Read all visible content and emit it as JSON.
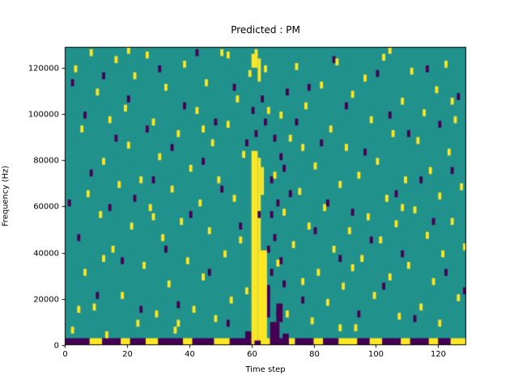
{
  "figure": {
    "title": "Predicted : PM",
    "xlabel": "Time step",
    "ylabel": "Frequency (Hz)"
  },
  "chart_data": {
    "type": "heatmap",
    "title": "Predicted : PM",
    "xlabel": "Time step",
    "ylabel": "Frequency (Hz)",
    "x_range": [
      0,
      129
    ],
    "y_range_hz": [
      0,
      129000
    ],
    "x_ticks": [
      0,
      20,
      40,
      60,
      80,
      100,
      120
    ],
    "y_ticks": [
      0,
      20000,
      40000,
      60000,
      80000,
      100000,
      120000
    ],
    "freq_bin_hz": 1000,
    "colormap": "viridis",
    "legend": "none",
    "grid": false,
    "colors": {
      "background": "#21918c",
      "high": "#fde725",
      "low": "#440154",
      "axis": "#000000"
    },
    "point_size": {
      "w": 1,
      "h": 3
    },
    "yellow_cells": [
      [
        2,
        5
      ],
      [
        3,
        118
      ],
      [
        5,
        92
      ],
      [
        6,
        30
      ],
      [
        7,
        64
      ],
      [
        8,
        125
      ],
      [
        9,
        15
      ],
      [
        10,
        108
      ],
      [
        11,
        55
      ],
      [
        12,
        78
      ],
      [
        13,
        3
      ],
      [
        14,
        96
      ],
      [
        15,
        40
      ],
      [
        16,
        122
      ],
      [
        17,
        68
      ],
      [
        18,
        20
      ],
      [
        19,
        101
      ],
      [
        20,
        85
      ],
      [
        21,
        50
      ],
      [
        22,
        115
      ],
      [
        23,
        8
      ],
      [
        24,
        70
      ],
      [
        25,
        33
      ],
      [
        26,
        124
      ],
      [
        27,
        58
      ],
      [
        28,
        95
      ],
      [
        29,
        12
      ],
      [
        30,
        80
      ],
      [
        31,
        45
      ],
      [
        32,
        110
      ],
      [
        33,
        25
      ],
      [
        34,
        66
      ],
      [
        35,
        5
      ],
      [
        36,
        90
      ],
      [
        37,
        52
      ],
      [
        38,
        120
      ],
      [
        39,
        35
      ],
      [
        40,
        75
      ],
      [
        41,
        14
      ],
      [
        42,
        100
      ],
      [
        43,
        60
      ],
      [
        44,
        28
      ],
      [
        45,
        112
      ],
      [
        46,
        48
      ],
      [
        47,
        86
      ],
      [
        48,
        10
      ],
      [
        49,
        70
      ],
      [
        50,
        125
      ],
      [
        51,
        38
      ],
      [
        52,
        94
      ],
      [
        53,
        18
      ],
      [
        54,
        62
      ],
      [
        55,
        105
      ],
      [
        56,
        44
      ],
      [
        57,
        81
      ],
      [
        58,
        22
      ],
      [
        59,
        116
      ],
      [
        61,
        125
      ],
      [
        64,
        118
      ],
      [
        65,
        100
      ],
      [
        67,
        72
      ],
      [
        68,
        34
      ],
      [
        69,
        98
      ],
      [
        70,
        56
      ],
      [
        71,
        12
      ],
      [
        72,
        88
      ],
      [
        73,
        42
      ],
      [
        74,
        119
      ],
      [
        75,
        65
      ],
      [
        76,
        26
      ],
      [
        77,
        102
      ],
      [
        78,
        50
      ],
      [
        79,
        9
      ],
      [
        80,
        76
      ],
      [
        81,
        30
      ],
      [
        82,
        111
      ],
      [
        83,
        58
      ],
      [
        84,
        17
      ],
      [
        85,
        92
      ],
      [
        86,
        40
      ],
      [
        87,
        121
      ],
      [
        88,
        68
      ],
      [
        89,
        24
      ],
      [
        90,
        84
      ],
      [
        91,
        48
      ],
      [
        92,
        107
      ],
      [
        93,
        6
      ],
      [
        94,
        72
      ],
      [
        95,
        36
      ],
      [
        96,
        114
      ],
      [
        97,
        54
      ],
      [
        98,
        96
      ],
      [
        99,
        20
      ],
      [
        100,
        78
      ],
      [
        101,
        44
      ],
      [
        102,
        123
      ],
      [
        103,
        62
      ],
      [
        104,
        28
      ],
      [
        105,
        90
      ],
      [
        106,
        51
      ],
      [
        107,
        11
      ],
      [
        108,
        104
      ],
      [
        109,
        70
      ],
      [
        110,
        33
      ],
      [
        111,
        117
      ],
      [
        112,
        57
      ],
      [
        113,
        87
      ],
      [
        114,
        15
      ],
      [
        115,
        99
      ],
      [
        116,
        46
      ],
      [
        117,
        74
      ],
      [
        118,
        26
      ],
      [
        119,
        109
      ],
      [
        120,
        63
      ],
      [
        121,
        38
      ],
      [
        122,
        120
      ],
      [
        123,
        82
      ],
      [
        124,
        52
      ],
      [
        125,
        96
      ],
      [
        126,
        19
      ],
      [
        127,
        67
      ],
      [
        128,
        41
      ],
      [
        4,
        14
      ],
      [
        20,
        126
      ],
      [
        36,
        8
      ],
      [
        52,
        124
      ],
      [
        88,
        6
      ],
      [
        104,
        126
      ],
      [
        120,
        8
      ],
      [
        12,
        36
      ],
      [
        28,
        54
      ],
      [
        44,
        92
      ],
      [
        76,
        84
      ],
      [
        92,
        32
      ],
      [
        108,
        58
      ],
      [
        124,
        104
      ]
    ],
    "dark_cells": [
      [
        1,
        60
      ],
      [
        2,
        112
      ],
      [
        4,
        45
      ],
      [
        6,
        98
      ],
      [
        8,
        73
      ],
      [
        10,
        20
      ],
      [
        12,
        115
      ],
      [
        14,
        58
      ],
      [
        16,
        88
      ],
      [
        18,
        35
      ],
      [
        20,
        105
      ],
      [
        22,
        62
      ],
      [
        24,
        14
      ],
      [
        26,
        92
      ],
      [
        28,
        70
      ],
      [
        30,
        118
      ],
      [
        32,
        40
      ],
      [
        34,
        84
      ],
      [
        36,
        16
      ],
      [
        38,
        102
      ],
      [
        40,
        55
      ],
      [
        42,
        125
      ],
      [
        44,
        78
      ],
      [
        46,
        30
      ],
      [
        48,
        95
      ],
      [
        50,
        66
      ],
      [
        52,
        8
      ],
      [
        54,
        110
      ],
      [
        56,
        50
      ],
      [
        58,
        86
      ],
      [
        60,
        100
      ],
      [
        62,
        55
      ],
      [
        64,
        95
      ],
      [
        66,
        30
      ],
      [
        66,
        70
      ],
      [
        67,
        45
      ],
      [
        68,
        12
      ],
      [
        68,
        60
      ],
      [
        69,
        80
      ],
      [
        70,
        25
      ],
      [
        71,
        108
      ],
      [
        72,
        64
      ],
      [
        74,
        95
      ],
      [
        76,
        18
      ],
      [
        78,
        110
      ],
      [
        80,
        48
      ],
      [
        82,
        86
      ],
      [
        84,
        60
      ],
      [
        86,
        122
      ],
      [
        88,
        36
      ],
      [
        90,
        102
      ],
      [
        92,
        56
      ],
      [
        94,
        12
      ],
      [
        96,
        82
      ],
      [
        98,
        44
      ],
      [
        100,
        116
      ],
      [
        102,
        24
      ],
      [
        104,
        98
      ],
      [
        106,
        64
      ],
      [
        108,
        38
      ],
      [
        110,
        90
      ],
      [
        112,
        10
      ],
      [
        114,
        70
      ],
      [
        116,
        118
      ],
      [
        118,
        52
      ],
      [
        120,
        94
      ],
      [
        122,
        30
      ],
      [
        124,
        74
      ],
      [
        126,
        106
      ],
      [
        128,
        22
      ],
      [
        65,
        40
      ],
      [
        66,
        55
      ],
      [
        67,
        88
      ],
      [
        69,
        35
      ],
      [
        70,
        75
      ],
      [
        63,
        105
      ],
      [
        61,
        90
      ]
    ],
    "yellow_blobs": [
      {
        "x": 60,
        "y": 2,
        "w": 2,
        "h": 82
      },
      {
        "x": 62,
        "y": 2,
        "w": 3,
        "h": 39
      },
      {
        "x": 62,
        "y": 41,
        "w": 1,
        "h": 40
      },
      {
        "x": 63,
        "y": 65,
        "w": 1,
        "h": 12
      },
      {
        "x": 62,
        "y": 114,
        "w": 1,
        "h": 10
      },
      {
        "x": 60,
        "y": 120,
        "w": 2,
        "h": 6
      }
    ],
    "dark_blobs": [
      {
        "x": 66,
        "y": 0,
        "w": 3,
        "h": 10
      },
      {
        "x": 68,
        "y": 10,
        "w": 2,
        "h": 8
      },
      {
        "x": 58,
        "y": 0,
        "w": 2,
        "h": 6
      },
      {
        "x": 65,
        "y": 12,
        "w": 1,
        "h": 14
      },
      {
        "x": 70,
        "y": 0,
        "w": 2,
        "h": 5
      }
    ],
    "bottom_band": {
      "y": 0,
      "h": 3,
      "segments": [
        {
          "x": 0,
          "w": 8,
          "c": "low"
        },
        {
          "x": 8,
          "w": 4,
          "c": "high"
        },
        {
          "x": 12,
          "w": 6,
          "c": "low"
        },
        {
          "x": 18,
          "w": 3,
          "c": "high"
        },
        {
          "x": 21,
          "w": 5,
          "c": "low"
        },
        {
          "x": 26,
          "w": 4,
          "c": "high"
        },
        {
          "x": 30,
          "w": 8,
          "c": "low"
        },
        {
          "x": 38,
          "w": 3,
          "c": "high"
        },
        {
          "x": 41,
          "w": 7,
          "c": "low"
        },
        {
          "x": 48,
          "w": 5,
          "c": "high"
        },
        {
          "x": 53,
          "w": 5,
          "c": "low"
        },
        {
          "x": 58,
          "w": 3,
          "c": "high"
        },
        {
          "x": 61,
          "w": 2,
          "c": "low"
        },
        {
          "x": 63,
          "w": 3,
          "c": "high"
        },
        {
          "x": 66,
          "w": 6,
          "c": "low"
        },
        {
          "x": 72,
          "w": 2,
          "c": "high"
        },
        {
          "x": 74,
          "w": 6,
          "c": "low"
        },
        {
          "x": 80,
          "w": 3,
          "c": "high"
        },
        {
          "x": 83,
          "w": 5,
          "c": "low"
        },
        {
          "x": 88,
          "w": 6,
          "c": "high"
        },
        {
          "x": 94,
          "w": 4,
          "c": "low"
        },
        {
          "x": 98,
          "w": 4,
          "c": "high"
        },
        {
          "x": 102,
          "w": 6,
          "c": "low"
        },
        {
          "x": 108,
          "w": 3,
          "c": "high"
        },
        {
          "x": 111,
          "w": 6,
          "c": "low"
        },
        {
          "x": 117,
          "w": 3,
          "c": "high"
        },
        {
          "x": 120,
          "w": 4,
          "c": "low"
        },
        {
          "x": 124,
          "w": 5,
          "c": "high"
        }
      ]
    }
  }
}
